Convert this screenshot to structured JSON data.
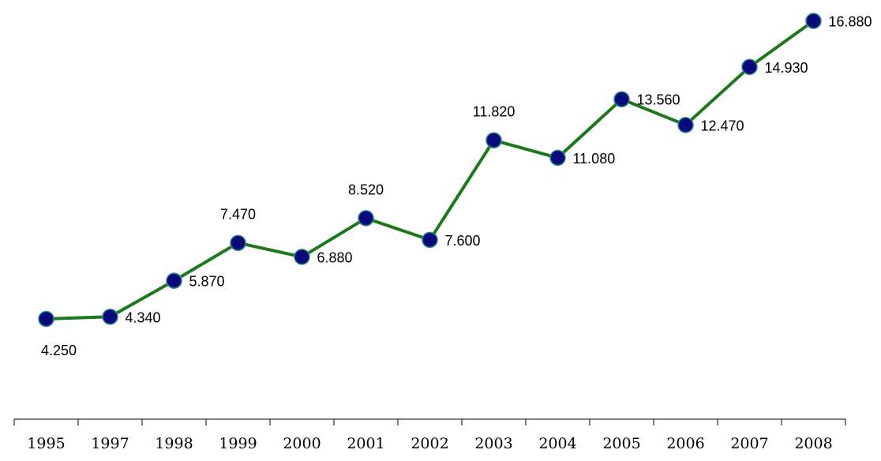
{
  "chart_data": {
    "type": "line",
    "categories": [
      "1995",
      "1997",
      "1998",
      "1999",
      "2000",
      "2001",
      "2002",
      "2003",
      "2004",
      "2005",
      "2006",
      "2007",
      "2008"
    ],
    "values": [
      4.25,
      4.34,
      5.87,
      7.47,
      6.88,
      8.52,
      7.6,
      11.82,
      11.08,
      13.56,
      12.47,
      14.93,
      16.88
    ],
    "data_labels": [
      "4.250",
      "4.340",
      "5.870",
      "7.470",
      "6.880",
      "8.520",
      "7.600",
      "11.820",
      "11.080",
      "13.560",
      "12.470",
      "14.930",
      "16.880"
    ],
    "title": "",
    "xlabel": "",
    "ylabel": "",
    "ylim": [
      0,
      17.6
    ],
    "grid": false,
    "legend": "none",
    "colors": {
      "line": "#1a7a1a",
      "marker_fill": "#0a0a7a",
      "marker_edge": "#2a8a8a",
      "axis": "#000000"
    }
  }
}
